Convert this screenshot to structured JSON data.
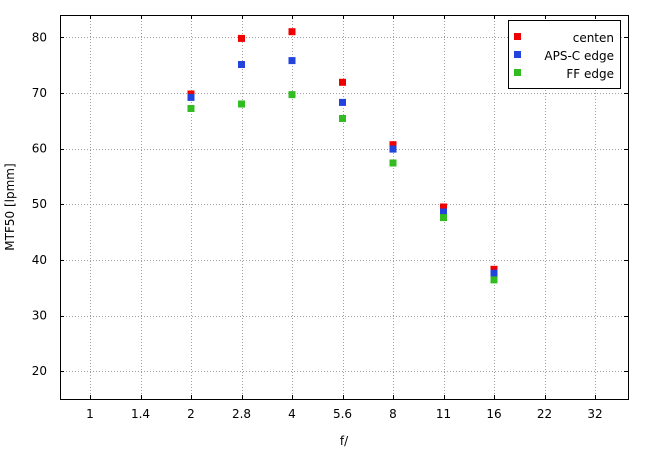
{
  "chart_data": {
    "type": "scatter",
    "title": "",
    "xlabel": "f/",
    "ylabel": "MTF50 [lpmm]",
    "categories": [
      "1",
      "1.4",
      "2",
      "2.8",
      "4",
      "5.6",
      "8",
      "11",
      "16",
      "22",
      "32"
    ],
    "ylim": [
      15,
      84
    ],
    "yticks": [
      20,
      30,
      40,
      50,
      60,
      70,
      80
    ],
    "grid": true,
    "legend_position": "top-right",
    "series": [
      {
        "name": "centen",
        "color": "#ee0000",
        "points": [
          {
            "x": "2",
            "y": 69.8
          },
          {
            "x": "2.8",
            "y": 79.8
          },
          {
            "x": "4",
            "y": 81.0
          },
          {
            "x": "5.6",
            "y": 71.9
          },
          {
            "x": "8",
            "y": 60.7
          },
          {
            "x": "11",
            "y": 49.5
          },
          {
            "x": "16",
            "y": 38.3
          }
        ]
      },
      {
        "name": "APS-C edge",
        "color": "#2244dd",
        "points": [
          {
            "x": "2",
            "y": 69.2
          },
          {
            "x": "2.8",
            "y": 75.1
          },
          {
            "x": "4",
            "y": 75.8
          },
          {
            "x": "5.6",
            "y": 68.3
          },
          {
            "x": "8",
            "y": 59.9
          },
          {
            "x": "11",
            "y": 48.6
          },
          {
            "x": "16",
            "y": 37.6
          }
        ]
      },
      {
        "name": "FF edge",
        "color": "#33bb22",
        "points": [
          {
            "x": "2",
            "y": 67.2
          },
          {
            "x": "2.8",
            "y": 68.0
          },
          {
            "x": "4",
            "y": 69.7
          },
          {
            "x": "5.6",
            "y": 65.4
          },
          {
            "x": "8",
            "y": 57.4
          },
          {
            "x": "11",
            "y": 47.6
          },
          {
            "x": "16",
            "y": 36.4
          }
        ]
      }
    ]
  }
}
